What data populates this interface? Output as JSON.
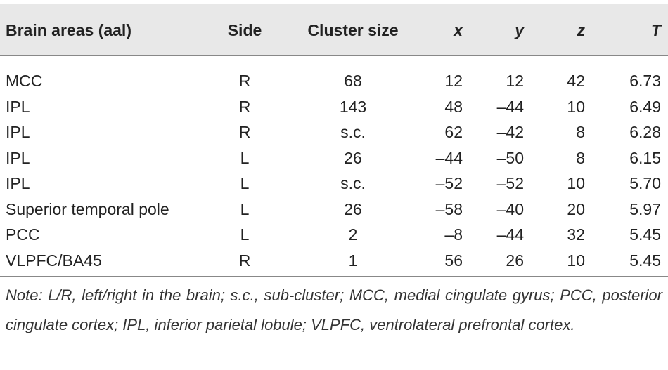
{
  "table": {
    "header": [
      "Brain areas (aal)",
      "Side",
      "Cluster size",
      "x",
      "y",
      "z",
      "T"
    ],
    "rows": [
      [
        "MCC",
        "R",
        "68",
        "12",
        "12",
        "42",
        "6.73"
      ],
      [
        "IPL",
        "R",
        "143",
        "48",
        "–44",
        "10",
        "6.49"
      ],
      [
        "IPL",
        "R",
        "s.c.",
        "62",
        "–42",
        "8",
        "6.28"
      ],
      [
        "IPL",
        "L",
        "26",
        "–44",
        "–50",
        "8",
        "6.15"
      ],
      [
        "IPL",
        "L",
        "s.c.",
        "–52",
        "–52",
        "10",
        "5.70"
      ],
      [
        "Superior temporal pole",
        "L",
        "26",
        "–58",
        "–40",
        "20",
        "5.97"
      ],
      [
        "PCC",
        "L",
        "2",
        "–8",
        "–44",
        "32",
        "5.45"
      ],
      [
        "VLPFC/BA45",
        "R",
        "1",
        "56",
        "26",
        "10",
        "5.45"
      ]
    ]
  },
  "note": "Note: L/R, left/right in the brain; s.c., sub-cluster; MCC, medial cingulate gyrus; PCC, posterior cingulate cortex; IPL, inferior parietal lobule; VLPFC, ventrolateral prefrontal cortex."
}
